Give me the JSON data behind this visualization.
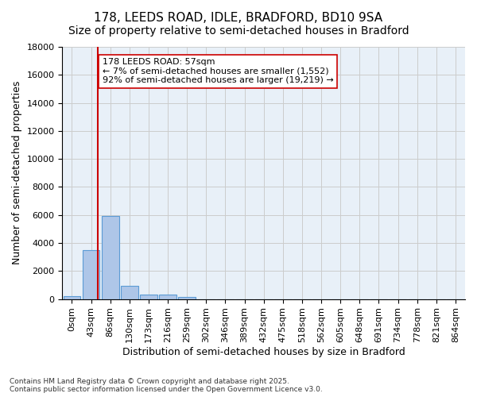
{
  "title_line1": "178, LEEDS ROAD, IDLE, BRADFORD, BD10 9SA",
  "title_line2": "Size of property relative to semi-detached houses in Bradford",
  "xlabel": "Distribution of semi-detached houses by size in Bradford",
  "ylabel": "Number of semi-detached properties",
  "bar_values": [
    200,
    3500,
    5900,
    950,
    330,
    330,
    150,
    0,
    0,
    0,
    0,
    0,
    0,
    0,
    0,
    0,
    0,
    0,
    0,
    0,
    0
  ],
  "bar_labels": [
    "0sqm",
    "43sqm",
    "86sqm",
    "130sqm",
    "173sqm",
    "216sqm",
    "259sqm",
    "302sqm",
    "346sqm",
    "389sqm",
    "432sqm",
    "475sqm",
    "518sqm",
    "562sqm",
    "605sqm",
    "648sqm",
    "691sqm",
    "734sqm",
    "778sqm",
    "821sqm",
    "864sqm"
  ],
  "bar_color": "#aec6e8",
  "bar_edge_color": "#5b9bd5",
  "vline_x": 1.33,
  "vline_color": "#cc0000",
  "annotation_text": "178 LEEDS ROAD: 57sqm\n← 7% of semi-detached houses are smaller (1,552)\n92% of semi-detached houses are larger (19,219) →",
  "annotation_box_color": "#ffffff",
  "annotation_box_edge": "#cc0000",
  "annotation_fontsize": 8,
  "ylim": [
    0,
    18000
  ],
  "yticks": [
    0,
    2000,
    4000,
    6000,
    8000,
    10000,
    12000,
    14000,
    16000,
    18000
  ],
  "background_color": "#ffffff",
  "plot_bg_color": "#e8f0f8",
  "grid_color": "#cccccc",
  "footer_text": "Contains HM Land Registry data © Crown copyright and database right 2025.\nContains public sector information licensed under the Open Government Licence v3.0.",
  "title_fontsize": 11,
  "subtitle_fontsize": 10,
  "axis_label_fontsize": 9,
  "tick_fontsize": 8
}
